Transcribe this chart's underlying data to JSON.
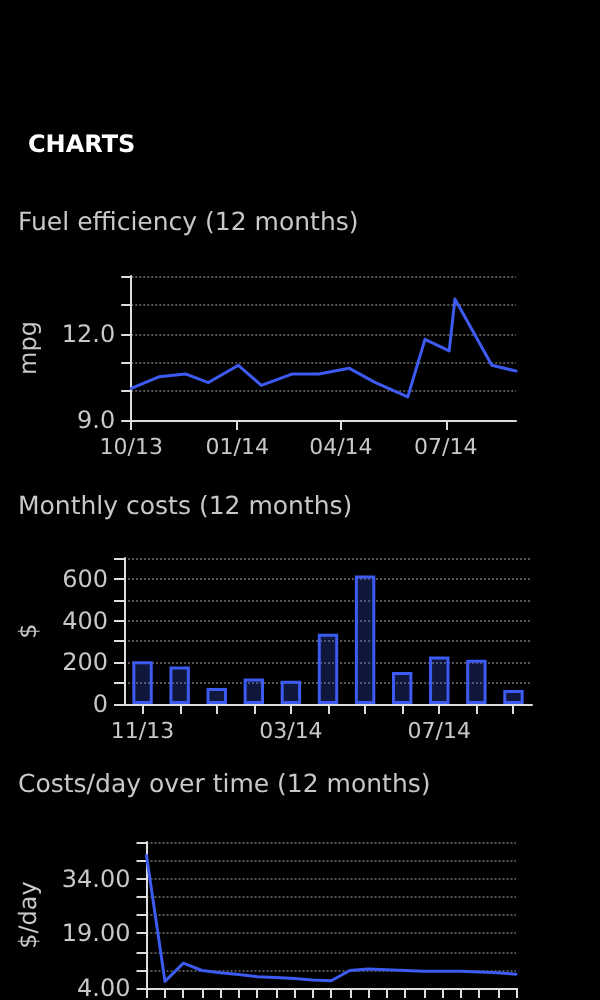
{
  "chart_data": [
    {
      "type": "line",
      "title": "Fuel efficiency (12 months)",
      "ylabel": "mpg",
      "annotations": [
        "CHARTS"
      ],
      "x": [
        "2013-10-01",
        "2013-10-25",
        "2013-11-17",
        "2013-12-07",
        "2014-01-02",
        "2014-01-22",
        "2014-02-18",
        "2014-03-13",
        "2014-04-08",
        "2014-05-01",
        "2014-05-29",
        "2014-06-13",
        "2014-07-04",
        "2014-07-09",
        "2014-08-10",
        "2014-08-31"
      ],
      "series": [
        {
          "color": "#3d5af1",
          "values": [
            10.1,
            10.5,
            10.6,
            10.3,
            10.9,
            10.2,
            10.6,
            10.6,
            10.8,
            10.3,
            9.8,
            11.8,
            11.4,
            13.2,
            10.9,
            10.7
          ]
        }
      ],
      "xlim": [
        "2013-10-01",
        "2014-08-31"
      ],
      "xticks": [
        {
          "value": "2013-10-01",
          "label": "10/13"
        },
        {
          "value": "2014-01-01",
          "label": "01/14"
        },
        {
          "value": "2014-04-01",
          "label": "04/14"
        },
        {
          "value": "2014-07-01",
          "label": "07/14"
        }
      ],
      "ylim": [
        9,
        14
      ],
      "yticks": [
        {
          "value": 9,
          "label": "9.0"
        },
        {
          "value": 10,
          "label": null
        },
        {
          "value": 11,
          "label": null
        },
        {
          "value": 12,
          "label": "12.0"
        },
        {
          "value": 13,
          "label": null
        },
        {
          "value": 14,
          "label": null
        }
      ],
      "grid": "y",
      "marker": "none",
      "line_style": "solid"
    },
    {
      "type": "bar",
      "title": "Monthly costs (12 months)",
      "ylabel": "$",
      "categories": [
        "11/13",
        null,
        null,
        null,
        "03/14",
        null,
        null,
        null,
        "07/14",
        null,
        null
      ],
      "series": [
        {
          "color": "#3d5af1",
          "values": [
            205,
            180,
            77,
            122,
            112,
            337,
            616,
            154,
            228,
            212,
            67
          ]
        }
      ],
      "ylim": [
        0,
        700
      ],
      "yticks": [
        0,
        {
          "value": 100,
          "label": null
        },
        200,
        {
          "value": 300,
          "label": null
        },
        400,
        {
          "value": 500,
          "label": null
        },
        600,
        {
          "value": 700,
          "label": null
        }
      ],
      "grid": "y"
    },
    {
      "type": "line",
      "title": "Costs/day over time (12 months)",
      "ylabel": "$/day",
      "categories": [
        null,
        null,
        null,
        null,
        null,
        null,
        null,
        null,
        null,
        null,
        null,
        null,
        null,
        null,
        null,
        null,
        null,
        null,
        null,
        null,
        null
      ],
      "series": [
        {
          "color": "#3d5af1",
          "values": [
            40.3,
            5.8,
            10.8,
            8.8,
            8.2,
            7.7,
            7.1,
            6.9,
            6.6,
            6.2,
            6.0,
            8.8,
            9.2,
            9.0,
            8.8,
            8.6,
            8.6,
            8.6,
            8.4,
            8.2,
            7.8
          ]
        }
      ],
      "ylim": [
        4,
        44
      ],
      "yticks": [
        {
          "value": 4,
          "label": "4.00"
        },
        {
          "value": 9,
          "label": null
        },
        {
          "value": 14,
          "label": null
        },
        {
          "value": 19,
          "label": "19.00"
        },
        {
          "value": 24,
          "label": null
        },
        {
          "value": 29,
          "label": null
        },
        {
          "value": 34,
          "label": "34.00"
        },
        {
          "value": 39,
          "label": null
        },
        {
          "value": 44,
          "label": null
        }
      ],
      "grid": "y",
      "tick_labels": "y",
      "marker": "none",
      "line_style": "solid"
    }
  ]
}
